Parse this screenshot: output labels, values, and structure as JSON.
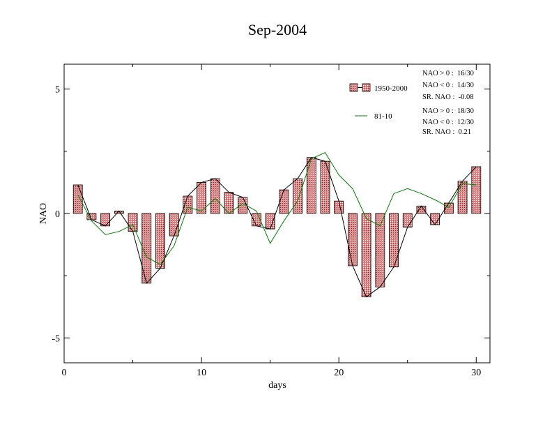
{
  "chart_data": {
    "type": "bar",
    "title": "Sep-2004",
    "xlabel": "days",
    "ylabel": "NAO",
    "xlim": [
      0,
      31
    ],
    "ylim": [
      -6,
      6
    ],
    "x_ticks": [
      0,
      10,
      20,
      30
    ],
    "x_tick_labels": [
      "0",
      "10",
      "20",
      "30"
    ],
    "y_ticks": [
      5,
      0,
      -5
    ],
    "y_tick_labels": [
      "5",
      "0",
      "-5"
    ],
    "grid": false,
    "legend_position": "top-right",
    "x": [
      1,
      2,
      3,
      4,
      5,
      6,
      7,
      8,
      9,
      10,
      11,
      12,
      13,
      14,
      15,
      16,
      17,
      18,
      19,
      20,
      21,
      22,
      23,
      24,
      25,
      26,
      27,
      28,
      29,
      30
    ],
    "series": [
      {
        "name": "1950-2000",
        "kind": "bar-with-line",
        "bar_color": "#e58a8a",
        "line_color": "#000000",
        "values": [
          1.15,
          -0.25,
          -0.5,
          0.1,
          -0.72,
          -2.8,
          -2.2,
          -0.9,
          0.7,
          1.25,
          1.4,
          0.85,
          0.65,
          -0.5,
          -0.62,
          0.95,
          1.4,
          2.25,
          2.1,
          0.5,
          -2.1,
          -3.35,
          -2.95,
          -2.15,
          -0.55,
          0.3,
          -0.45,
          0.42,
          1.3,
          1.88
        ]
      },
      {
        "name": "81-10",
        "kind": "line",
        "line_color": "#008000",
        "values": [
          0.75,
          -0.3,
          -0.85,
          -0.72,
          -0.45,
          -1.75,
          -2.05,
          -1.3,
          0.25,
          0.1,
          0.6,
          0.0,
          0.4,
          0.1,
          -1.2,
          -0.3,
          0.5,
          2.2,
          2.45,
          1.55,
          1.0,
          -0.2,
          -0.5,
          0.8,
          1.0,
          0.8,
          0.55,
          0.25,
          1.2,
          1.15
        ]
      }
    ],
    "stats_1950_2000": [
      "NAO > 0 :  16/30",
      "NAO < 0 :  14/30",
      "SR. NAO :  -0.08"
    ],
    "stats_81_10": [
      "NAO > 0 :  18/30",
      "NAO < 0 :  12/30",
      "SR. NAO :  0.21"
    ]
  }
}
